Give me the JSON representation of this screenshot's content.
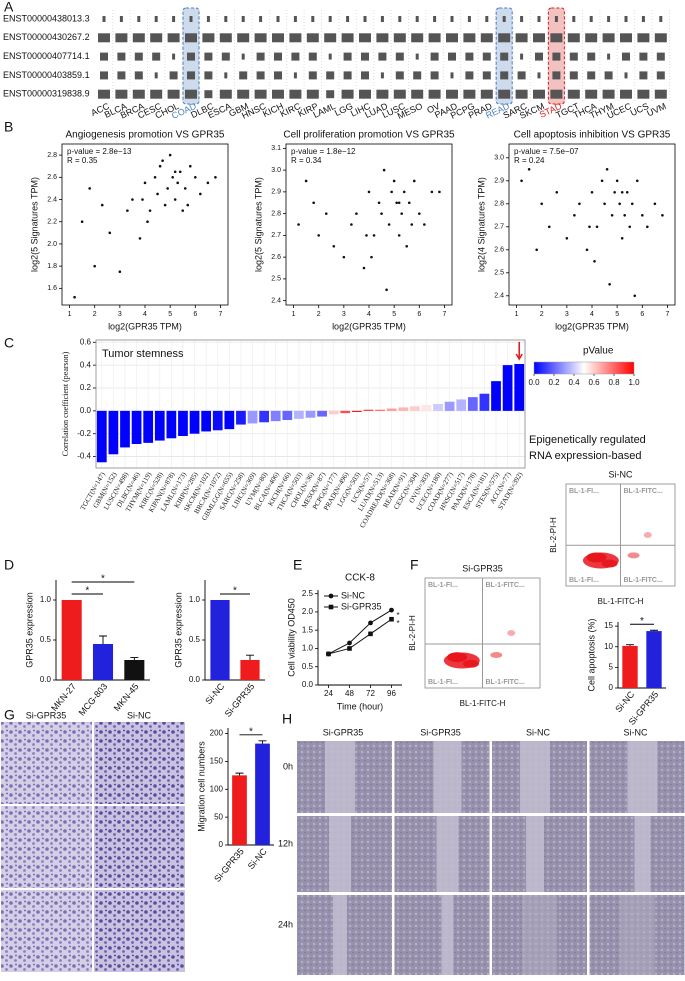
{
  "panel_labels": [
    "A",
    "B",
    "C",
    "D",
    "E",
    "F",
    "G",
    "H"
  ],
  "chart_data": [
    {
      "type": "tile",
      "rows": [
        "ENST00000438013.3",
        "ENST00000430267.2",
        "ENST00000407714.1",
        "ENST00000403859.1",
        "ENST00000319838.9"
      ],
      "categories": [
        "ACC",
        "BLCA",
        "BRCA",
        "CESC",
        "CHOL",
        "COAD",
        "DLBC",
        "ESCA",
        "GBM",
        "HNSC",
        "KICH",
        "KIRC",
        "KIRP",
        "LAML",
        "LGG",
        "LIHC",
        "LUAD",
        "LUSC",
        "MESO",
        "OV",
        "PAAD",
        "PCPG",
        "PRAD",
        "READ",
        "SARC",
        "SKCM",
        "STAD",
        "TGCT",
        "THCA",
        "THYM",
        "UCEC",
        "UCS",
        "UVM"
      ],
      "values": [
        [
          1,
          1,
          1,
          1,
          1,
          1,
          1,
          1,
          1,
          1,
          1,
          1,
          1,
          1,
          1,
          1,
          1,
          1,
          1,
          1,
          1,
          1,
          1,
          1,
          1,
          1,
          1,
          1,
          1,
          1,
          1,
          1,
          1
        ],
        [
          3,
          3,
          3,
          3,
          3,
          3,
          3,
          3,
          3,
          3,
          3,
          3,
          3,
          3,
          3,
          3,
          3,
          3,
          3,
          3,
          3,
          3,
          3,
          3,
          3,
          3,
          3,
          3,
          3,
          3,
          3,
          3,
          3
        ],
        [
          2,
          2,
          2,
          2,
          1,
          2,
          2,
          2,
          1,
          2,
          2,
          2,
          2,
          1,
          2,
          2,
          2,
          2,
          1,
          2,
          2,
          2,
          2,
          2,
          1,
          2,
          2,
          2,
          2,
          1,
          2,
          2,
          2
        ],
        [
          2,
          2,
          2,
          1,
          2,
          2,
          2,
          1,
          2,
          2,
          2,
          1,
          2,
          2,
          2,
          2,
          1,
          2,
          2,
          2,
          1,
          2,
          2,
          2,
          2,
          1,
          2,
          2,
          2,
          2,
          1,
          2,
          2
        ],
        [
          3,
          3,
          3,
          3,
          3,
          3,
          2,
          3,
          3,
          3,
          3,
          3,
          3,
          2,
          3,
          3,
          3,
          3,
          3,
          3,
          3,
          3,
          3,
          3,
          3,
          3,
          3,
          3,
          3,
          3,
          3,
          3,
          3
        ]
      ],
      "color": "#555555",
      "highlights": [
        {
          "category": "COAD",
          "color": "#4a7fc0"
        },
        {
          "category": "READ",
          "color": "#4a7fc0"
        },
        {
          "category": "STAD",
          "color": "#d62020"
        }
      ]
    },
    {
      "type": "scatter",
      "title": "Angiogenesis promotion VS GPR35",
      "xlabel": "log2(GPR35 TPM)",
      "ylabel": "log2(5 Signatures TPM)",
      "stats": [
        "p-value = 2.8e−13",
        "R = 0.35"
      ],
      "color": "#111111",
      "x": [
        1.2,
        1.5,
        1.8,
        2.0,
        2.3,
        2.6,
        3.0,
        3.3,
        3.5,
        3.8,
        4.0,
        4.2,
        4.4,
        4.5,
        4.6,
        4.8,
        4.9,
        5.0,
        5.1,
        5.2,
        5.3,
        5.4,
        5.5,
        5.6,
        5.8,
        6.0,
        6.2,
        6.5,
        4.1,
        3.9,
        4.7,
        5.2,
        5.7,
        6.8
      ],
      "values": [
        1.52,
        2.2,
        2.5,
        1.8,
        2.35,
        2.1,
        1.75,
        2.3,
        2.4,
        2.05,
        2.55,
        2.3,
        2.6,
        2.45,
        2.7,
        2.35,
        2.5,
        2.8,
        2.6,
        2.4,
        2.55,
        2.65,
        2.3,
        2.5,
        2.7,
        2.6,
        2.45,
        2.55,
        2.2,
        2.4,
        2.75,
        2.65,
        2.35,
        2.6
      ],
      "xlim": [
        0.7,
        7.3
      ],
      "xticks": [
        1,
        2,
        3,
        4,
        5,
        6,
        7
      ],
      "ylim": [
        1.45,
        2.9
      ],
      "yticks": [
        1.6,
        1.8,
        {
          "value": 2,
          "label": "2.0"
        },
        2.2,
        2.4,
        2.6,
        2.8
      ]
    },
    {
      "type": "scatter",
      "title": "Cell proliferation promotion VS GPR35",
      "xlabel": "log2(GPR35 TPM)",
      "ylabel": "log2(5 Signatures TPM)",
      "stats": [
        "p-value = 1.8e−12",
        "R = 0.34"
      ],
      "color": "#111111",
      "x": [
        1.2,
        1.5,
        1.8,
        2.0,
        2.3,
        2.6,
        3.0,
        3.3,
        3.5,
        3.8,
        4.0,
        4.2,
        4.4,
        4.5,
        4.6,
        4.8,
        4.9,
        5.0,
        5.1,
        5.2,
        5.3,
        5.4,
        5.5,
        5.6,
        5.8,
        6.0,
        6.2,
        6.5,
        4.1,
        3.9,
        4.7,
        5.2,
        5.7,
        6.8
      ],
      "values": [
        2.75,
        2.95,
        2.85,
        2.7,
        2.8,
        2.65,
        2.6,
        2.75,
        2.8,
        2.55,
        2.9,
        2.7,
        2.85,
        2.8,
        3.0,
        2.75,
        2.9,
        2.95,
        2.85,
        2.7,
        2.8,
        2.9,
        2.65,
        2.85,
        2.95,
        2.8,
        2.75,
        2.9,
        2.6,
        2.7,
        2.45,
        2.85,
        2.75,
        2.9
      ],
      "xlim": [
        0.7,
        7.3
      ],
      "xticks": [
        1,
        2,
        3,
        4,
        5,
        6,
        7
      ],
      "ylim": [
        2.38,
        3.12
      ],
      "yticks": [
        2.4,
        2.5,
        2.6,
        2.7,
        2.8,
        2.9,
        {
          "value": 3,
          "label": "3.0"
        },
        3.1
      ]
    },
    {
      "type": "scatter",
      "title": "Cell apoptosis inhibition VS GPR35",
      "xlabel": "log2(GPR35 TPM)",
      "ylabel": "log2(4 Signatures TPM)",
      "stats": [
        "p-value = 7.5e−07",
        "R = 0.24"
      ],
      "color": "#111111",
      "x": [
        1.2,
        1.5,
        1.8,
        2.0,
        2.3,
        2.6,
        3.0,
        3.3,
        3.5,
        3.8,
        4.0,
        4.2,
        4.4,
        4.5,
        4.6,
        4.8,
        4.9,
        5.0,
        5.1,
        5.2,
        5.3,
        5.4,
        5.5,
        5.6,
        5.8,
        6.0,
        6.2,
        6.5,
        4.1,
        3.9,
        4.7,
        5.2,
        5.7,
        6.8
      ],
      "values": [
        2.9,
        2.95,
        2.6,
        2.8,
        2.7,
        2.85,
        2.65,
        2.75,
        2.8,
        2.6,
        2.85,
        2.7,
        2.9,
        2.8,
        2.95,
        2.75,
        2.85,
        2.9,
        2.8,
        2.65,
        2.75,
        2.85,
        2.7,
        2.8,
        2.9,
        2.75,
        2.7,
        2.8,
        2.55,
        2.7,
        2.45,
        2.85,
        2.4,
        2.75
      ],
      "xlim": [
        0.7,
        7.3
      ],
      "xticks": [
        1,
        2,
        3,
        4,
        5,
        6,
        7
      ],
      "ylim": [
        2.36,
        3.06
      ],
      "yticks": [
        2.4,
        2.5,
        2.6,
        2.7,
        2.8,
        2.9,
        {
          "value": 3,
          "label": "3.0"
        }
      ]
    },
    {
      "type": "colorbar-bar",
      "title": "Tumor stemness",
      "ylabel": "Correlation coefficient (pearson)",
      "annotations": [
        "Epigenetically regulated",
        "RNA expression-based"
      ],
      "categories": [
        "TGCT(N=147)",
        "GBM(N=152)",
        "LUSC(N=498)",
        "DLBC(N=46)",
        "THYM(N=119)",
        "KIRC(N=528)",
        "KIPAN(N=878)",
        "LAML(N=173)",
        "KIRP(N=285)",
        "SKCM(N=102)",
        "BRCA(N=1072)",
        "GBMLGG(N=655)",
        "SARC(N=258)",
        "LIHC(N=369)",
        "UVM(N=80)",
        "BLCA(N=406)",
        "KICH(N=66)",
        "THCA(N=503)",
        "CHOL(N=36)",
        "MESO(N=87)",
        "PCPG(N=177)",
        "PRAD(N=496)",
        "LGG(N=503)",
        "UCS(N=57)",
        "LUAD(N=513)",
        "COADREAD(N=368)",
        "READ(N=91)",
        "CESC(N=304)",
        "OV(N=303)",
        "UCEC(N=180)",
        "COAD(N=277)",
        "HNSC(N=517)",
        "PAAD(N=178)",
        "ESCA(N=181)",
        "STES(N=575)",
        "ACC(N=77)",
        "STAD(N=392)"
      ],
      "values": [
        -0.45,
        -0.38,
        -0.32,
        -0.29,
        -0.28,
        -0.26,
        -0.24,
        -0.22,
        -0.2,
        -0.18,
        -0.17,
        -0.16,
        -0.12,
        -0.11,
        -0.1,
        -0.09,
        -0.08,
        -0.07,
        -0.06,
        -0.05,
        -0.03,
        -0.02,
        -0.01,
        0.01,
        0.01,
        0.02,
        0.03,
        0.04,
        0.05,
        0.06,
        0.08,
        0.1,
        0.12,
        0.15,
        0.26,
        0.4,
        0.41
      ],
      "pvalues": [
        0,
        0,
        0,
        0,
        0,
        0,
        0,
        0,
        0,
        0,
        0.02,
        0,
        0.05,
        0.3,
        0.1,
        0.25,
        0.2,
        0.35,
        0.3,
        0.2,
        0.6,
        0.85,
        0.95,
        0.9,
        0.8,
        0.7,
        0.65,
        0.6,
        0.55,
        0.4,
        0.3,
        0.35,
        0.2,
        0.1,
        0,
        0,
        0
      ],
      "colorbar_title": "pValue",
      "colorscale": [
        [
          0,
          "#0000ff"
        ],
        [
          0.5,
          "#ffffff"
        ],
        [
          1,
          "#ff0000"
        ]
      ],
      "colorbar_ticks": [
        {
          "value": 0,
          "label": "0.0"
        },
        0.2,
        0.4,
        0.6,
        0.8,
        {
          "value": 1,
          "label": "1.0"
        }
      ],
      "ylim": [
        -0.5,
        0.62
      ],
      "yticks": [
        -0.4,
        -0.2,
        {
          "value": 0,
          "label": "0.0"
        },
        0.2,
        0.4,
        0.6
      ],
      "grid": true
    },
    {
      "type": "bar",
      "ylabel": "GPR35 expression",
      "categories": [
        "MKN-27",
        "MCG-803",
        "MKN-45"
      ],
      "values": [
        1.0,
        0.45,
        0.25
      ],
      "errors": [
        0,
        0.1,
        0.03
      ],
      "colors": [
        "#ee1c1c",
        "#2222dd",
        "#111111"
      ],
      "annotations": [
        "*",
        "*"
      ],
      "ylim": [
        0,
        1.25
      ],
      "yticks": [
        {
          "value": 0,
          "label": "0.0"
        },
        0.5,
        {
          "value": 1,
          "label": "1.0"
        }
      ]
    },
    {
      "type": "bar",
      "ylabel": "GPR35 expression",
      "categories": [
        "Si-NC",
        "Si-GPR35"
      ],
      "values": [
        1.0,
        0.25
      ],
      "errors": [
        0,
        0.06
      ],
      "colors": [
        "#2222dd",
        "#ee1c1c"
      ],
      "annotations": [
        "*"
      ],
      "ylim": [
        0,
        1.25
      ],
      "yticks": [
        {
          "value": 0,
          "label": "0.0"
        },
        0.5,
        {
          "value": 1,
          "label": "1.0"
        }
      ]
    },
    {
      "type": "line",
      "title": "CCK-8",
      "xlabel": "Time (hour)",
      "ylabel": "Cell viability OD450",
      "x": [
        24,
        48,
        72,
        96
      ],
      "series": [
        {
          "name": "Si-NC",
          "color": "#111111",
          "marker": "circle",
          "values": [
            0.85,
            1.15,
            1.7,
            2.05
          ]
        },
        {
          "name": "Si-GPR35",
          "color": "#111111",
          "marker": "square",
          "values": [
            0.85,
            1.0,
            1.4,
            1.8
          ]
        }
      ],
      "annotations": [
        "*",
        "*"
      ],
      "xlim": [
        12,
        108
      ],
      "xticks": [
        24,
        48,
        72,
        96
      ],
      "ylim": [
        0,
        2.6
      ],
      "yticks": [
        {
          "value": 0,
          "label": "0.0"
        },
        0.5,
        {
          "value": 1,
          "label": "1.0"
        },
        1.5,
        {
          "value": 2,
          "label": "2.0"
        },
        2.5
      ]
    },
    {
      "type": "bar",
      "ylabel": "Cell apoptosis (%)",
      "categories": [
        "Si-NC",
        "Si-GPR35"
      ],
      "values": [
        10.2,
        13.8
      ],
      "errors": [
        0.3,
        0.2
      ],
      "colors": [
        "#ee1c1c",
        "#2222dd"
      ],
      "annotations": [
        "*"
      ],
      "ylim": [
        0,
        16
      ],
      "yticks": [
        0,
        5,
        10,
        15
      ]
    },
    {
      "type": "bar",
      "ylabel": "Migration cell numbers",
      "categories": [
        "Si-GPR35",
        "Si-NC"
      ],
      "values": [
        125,
        182
      ],
      "errors": [
        4,
        5
      ],
      "colors": [
        "#ee1c1c",
        "#2222dd"
      ],
      "annotations": [
        "*"
      ],
      "ylim": [
        0,
        210
      ],
      "yticks": [
        0,
        50,
        100,
        150,
        200
      ]
    }
  ],
  "flow_plots": [
    {
      "title": "Si-GPR35",
      "xlabel": "BL-1-FITC-H",
      "ylabel": "BL-2-PI-H",
      "quadrants": [
        "BL-1-FI...",
        "BL-1-FITC...",
        "BL-1-FI...",
        "BL-1-FITC..."
      ]
    },
    {
      "title": "Si-NC",
      "xlabel": "BL-1-FITC-H",
      "ylabel": "BL-2-PI-H",
      "quadrants": [
        "BL-1-FI...",
        "BL-1-FITC...",
        "BL-1-FI...",
        "BL-1-FITC..."
      ]
    }
  ],
  "transwell": {
    "columns": [
      "Si-GPR35",
      "Si-NC"
    ]
  },
  "wound": {
    "columns": [
      "Si-GPR35",
      "Si-GPR35",
      "Si-NC",
      "Si-NC"
    ],
    "rows": [
      "0h",
      "12h",
      "24h"
    ]
  }
}
